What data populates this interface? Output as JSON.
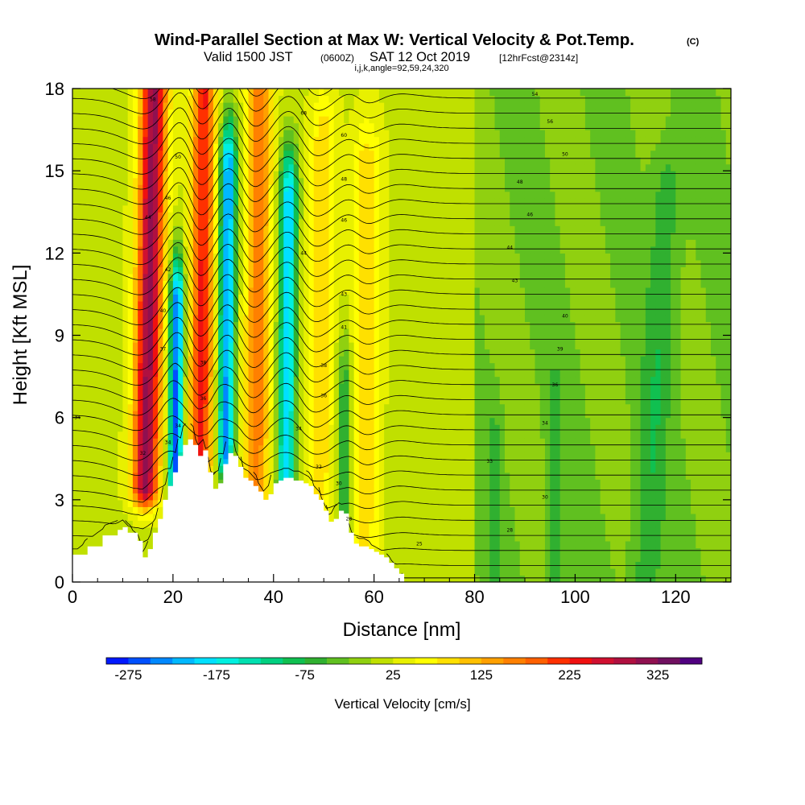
{
  "chart_data": {
    "type": "heatmap",
    "title": "Wind-Parallel Section at Max W: Vertical Velocity & Pot.Temp.",
    "title_mark": "(C)",
    "subtitle": {
      "valid": "Valid 1500 JST",
      "utc": "(0600Z)",
      "date": "SAT 12 Oct 2019",
      "forecast": "[12hrFcst@2314z]"
    },
    "params": "i,j,k,angle=92,59,24,320",
    "xlabel": "Distance [nm]",
    "ylabel": "Height [Kft MSL]",
    "xlim": [
      0,
      131
    ],
    "ylim": [
      0,
      18
    ],
    "x_ticks": [
      0,
      20,
      40,
      60,
      80,
      100,
      120
    ],
    "y_ticks": [
      0,
      3,
      6,
      9,
      12,
      15,
      18
    ],
    "colorbar": {
      "label": "Vertical Velocity [cm/s]",
      "ticks": [
        -275,
        -175,
        -75,
        25,
        125,
        225,
        325
      ],
      "levels": [
        -300,
        -275,
        -250,
        -225,
        -200,
        -175,
        -150,
        -125,
        -100,
        -75,
        -50,
        -25,
        0,
        25,
        50,
        75,
        100,
        125,
        150,
        175,
        200,
        225,
        250,
        275,
        300,
        325,
        350,
        375
      ],
      "colors": [
        "#0018ff",
        "#0050ff",
        "#0088ff",
        "#00b8ff",
        "#00e0ff",
        "#00f0e0",
        "#00e0b0",
        "#00d080",
        "#10c050",
        "#30b030",
        "#60c020",
        "#90d010",
        "#c0e000",
        "#e8f000",
        "#ffff00",
        "#ffe000",
        "#ffc000",
        "#ffa000",
        "#ff8000",
        "#ff6000",
        "#ff3000",
        "#f01010",
        "#d01030",
        "#b01040",
        "#901050",
        "#701060",
        "#500080"
      ]
    },
    "terrain_profile": {
      "x": [
        0,
        1,
        3,
        6,
        9,
        10,
        11,
        13,
        14,
        15,
        16,
        17,
        18,
        19,
        20,
        21,
        22,
        23,
        24,
        25,
        26,
        27,
        28,
        29,
        30,
        31,
        32,
        33,
        34,
        35,
        36,
        37,
        38,
        39,
        40,
        41,
        42,
        43,
        44,
        45,
        46,
        47,
        48,
        49,
        50,
        51,
        52,
        53,
        54,
        55,
        56,
        57,
        58,
        59,
        60,
        61,
        62,
        63,
        64,
        65,
        66
      ],
      "height_kft": [
        1.0,
        1.0,
        1.3,
        1.7,
        1.9,
        2.0,
        1.8,
        1.5,
        0.9,
        1.2,
        1.8,
        2.3,
        3.0,
        3.5,
        4.0,
        4.6,
        5.0,
        5.2,
        5.0,
        4.6,
        4.8,
        4.0,
        3.4,
        3.6,
        4.3,
        4.7,
        4.6,
        4.2,
        3.8,
        3.7,
        3.5,
        3.3,
        3.0,
        3.2,
        3.6,
        3.7,
        3.8,
        3.8,
        3.7,
        3.7,
        3.6,
        3.5,
        3.2,
        3.0,
        2.6,
        2.2,
        2.3,
        2.6,
        2.5,
        1.8,
        1.4,
        1.3,
        1.3,
        1.2,
        1.1,
        1.0,
        0.9,
        0.7,
        0.5,
        0.3,
        0.0
      ]
    },
    "vertical_velocity_features": [
      {
        "x": 14.5,
        "z_base": 3.5,
        "z_top": 18,
        "tilt_per_kft": 0.12,
        "width": 2.6,
        "peak": 290
      },
      {
        "x": 25.5,
        "z_base": 4.5,
        "z_top": 18,
        "tilt_per_kft": 0.05,
        "width": 2.3,
        "peak": 210
      },
      {
        "x": 36.5,
        "z_base": 3.5,
        "z_top": 18,
        "tilt_per_kft": 0.06,
        "width": 2.4,
        "peak": 150
      },
      {
        "x": 49.0,
        "z_base": 2.0,
        "z_top": 16,
        "tilt_per_kft": 0.06,
        "width": 2.5,
        "peak": 75
      },
      {
        "x": 58.0,
        "z_base": 1.0,
        "z_top": 15,
        "tilt_per_kft": 0.04,
        "width": 2.6,
        "peak": 75
      },
      {
        "x": 20.5,
        "z_base": 3.0,
        "z_top": 10,
        "tilt_per_kft": 0.04,
        "width": 1.4,
        "peak": -280
      },
      {
        "x": 30.5,
        "z_base": 4.5,
        "z_top": 15,
        "tilt_per_kft": 0.05,
        "width": 1.6,
        "peak": -250
      },
      {
        "x": 42.5,
        "z_base": 3.5,
        "z_top": 14,
        "tilt_per_kft": 0.05,
        "width": 1.7,
        "peak": -220
      },
      {
        "x": 54.0,
        "z_base": 2.0,
        "z_top": 7,
        "tilt_per_kft": 0.03,
        "width": 1.4,
        "peak": -100
      },
      {
        "x": 84.0,
        "z_base": 0.0,
        "z_top": 4.5,
        "tilt_per_kft": 0.0,
        "width": 1.2,
        "peak": -45
      },
      {
        "x": 96.0,
        "z_base": 0.0,
        "z_top": 6.0,
        "tilt_per_kft": 0.0,
        "width": 1.4,
        "peak": -45
      },
      {
        "x": 114.0,
        "z_base": 0.0,
        "z_top": 14.0,
        "tilt_per_kft": 0.3,
        "width": 3.0,
        "peak": -45
      }
    ],
    "background_w": 20,
    "downstream_w": -25,
    "downstream_start": 80,
    "theta_contour_labels": [
      {
        "x": 16,
        "y": 17.6,
        "text": "58"
      },
      {
        "x": 21,
        "y": 15.5,
        "text": "50"
      },
      {
        "x": 19,
        "y": 14.0,
        "text": "46"
      },
      {
        "x": 15,
        "y": 13.3,
        "text": "44"
      },
      {
        "x": 19,
        "y": 11.4,
        "text": "42"
      },
      {
        "x": 18,
        "y": 9.9,
        "text": "40"
      },
      {
        "x": 18,
        "y": 8.5,
        "text": "37"
      },
      {
        "x": 26,
        "y": 8.0,
        "text": "38"
      },
      {
        "x": 26,
        "y": 6.7,
        "text": "36"
      },
      {
        "x": 21,
        "y": 5.7,
        "text": "34"
      },
      {
        "x": 19,
        "y": 5.1,
        "text": "34"
      },
      {
        "x": 14,
        "y": 4.7,
        "text": "32"
      },
      {
        "x": 1,
        "y": 6.0,
        "text": "34"
      },
      {
        "x": 46,
        "y": 17.1,
        "text": "68"
      },
      {
        "x": 54,
        "y": 16.3,
        "text": "60"
      },
      {
        "x": 54,
        "y": 14.7,
        "text": "48"
      },
      {
        "x": 54,
        "y": 13.2,
        "text": "46"
      },
      {
        "x": 46,
        "y": 12.0,
        "text": "44"
      },
      {
        "x": 54,
        "y": 10.5,
        "text": "43"
      },
      {
        "x": 54,
        "y": 9.3,
        "text": "41"
      },
      {
        "x": 50,
        "y": 7.9,
        "text": "38"
      },
      {
        "x": 50,
        "y": 6.8,
        "text": "36"
      },
      {
        "x": 45,
        "y": 5.6,
        "text": "34"
      },
      {
        "x": 49,
        "y": 4.2,
        "text": "32"
      },
      {
        "x": 53,
        "y": 3.6,
        "text": "30"
      },
      {
        "x": 55,
        "y": 2.3,
        "text": "28"
      },
      {
        "x": 69,
        "y": 1.4,
        "text": "25"
      },
      {
        "x": 92,
        "y": 17.8,
        "text": "54"
      },
      {
        "x": 95,
        "y": 16.8,
        "text": "56"
      },
      {
        "x": 98,
        "y": 15.6,
        "text": "50"
      },
      {
        "x": 89,
        "y": 14.6,
        "text": "48"
      },
      {
        "x": 91,
        "y": 13.4,
        "text": "46"
      },
      {
        "x": 87,
        "y": 12.2,
        "text": "44"
      },
      {
        "x": 88,
        "y": 11.0,
        "text": "43"
      },
      {
        "x": 98,
        "y": 9.7,
        "text": "40"
      },
      {
        "x": 97,
        "y": 8.5,
        "text": "39"
      },
      {
        "x": 96,
        "y": 7.2,
        "text": "36"
      },
      {
        "x": 94,
        "y": 5.8,
        "text": "34"
      },
      {
        "x": 83,
        "y": 4.4,
        "text": "33"
      },
      {
        "x": 94,
        "y": 3.1,
        "text": "30"
      },
      {
        "x": 87,
        "y": 1.9,
        "text": "28"
      }
    ]
  }
}
